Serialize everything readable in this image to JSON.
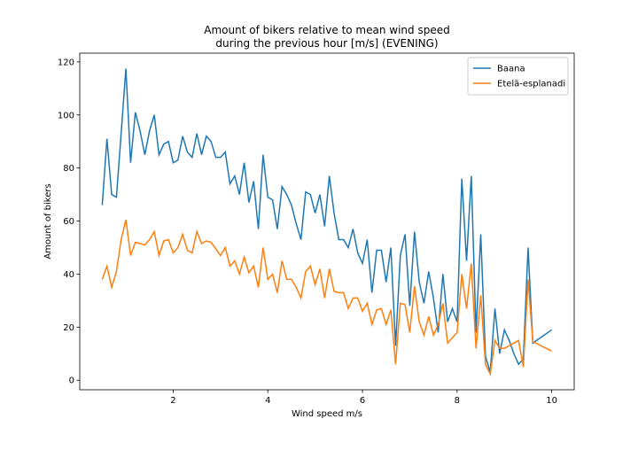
{
  "chart_data": {
    "type": "line",
    "title": [
      "Amount of bikers relative to mean wind speed",
      "during the previous hour [m/s] (EVENING)"
    ],
    "x_label": "Wind speed m/s",
    "y_label": "Amount of bikers",
    "x": [
      0.5,
      0.6,
      0.7,
      0.8,
      0.9,
      1.0,
      1.1,
      1.2,
      1.3,
      1.4,
      1.5,
      1.6,
      1.7,
      1.8,
      1.9,
      2.0,
      2.1,
      2.2,
      2.3,
      2.4,
      2.5,
      2.6,
      2.7,
      2.8,
      2.9,
      3.0,
      3.1,
      3.2,
      3.3,
      3.4,
      3.5,
      3.6,
      3.7,
      3.8,
      3.9,
      4.0,
      4.1,
      4.2,
      4.3,
      4.4,
      4.5,
      4.6,
      4.7,
      4.8,
      4.9,
      5.0,
      5.1,
      5.2,
      5.3,
      5.4,
      5.5,
      5.6,
      5.7,
      5.8,
      5.9,
      6.0,
      6.1,
      6.2,
      6.3,
      6.4,
      6.5,
      6.6,
      6.7,
      6.8,
      6.9,
      7.0,
      7.1,
      7.2,
      7.3,
      7.4,
      7.5,
      7.6,
      7.7,
      7.8,
      7.9,
      8.0,
      8.1,
      8.2,
      8.3,
      8.4,
      8.5,
      8.6,
      8.7,
      8.8,
      8.9,
      9.0,
      9.1,
      9.2,
      9.3,
      9.4,
      9.5,
      9.6,
      10.0
    ],
    "series": [
      {
        "name": "Baana",
        "color": "#1f77b4",
        "values": [
          66,
          91,
          70,
          69,
          93,
          117.5,
          82,
          101,
          94,
          85,
          94,
          100,
          85,
          89,
          90,
          82,
          83,
          92,
          86,
          84,
          93,
          85,
          92,
          90,
          84,
          84,
          86,
          74,
          77,
          70,
          82,
          67,
          75,
          57,
          85,
          69,
          68,
          57,
          73,
          70,
          66,
          59,
          53,
          71,
          70,
          63,
          70,
          58,
          77,
          63,
          53,
          53,
          50,
          57,
          48,
          44,
          53,
          33,
          49,
          49,
          37,
          50,
          13,
          47,
          55,
          28,
          56,
          37,
          29,
          41,
          31,
          18,
          40,
          22,
          27,
          22,
          76,
          45,
          77,
          18,
          55,
          9,
          3,
          27,
          10,
          19,
          15,
          10,
          6,
          8,
          50,
          14,
          19
        ]
      },
      {
        "name": "Etelä-esplanadi",
        "color": "#ff7f0e",
        "values": [
          38,
          43,
          35,
          41,
          53,
          60.5,
          47,
          52,
          51.5,
          51,
          53,
          56,
          47,
          52.5,
          53,
          48,
          50,
          55,
          49,
          48,
          56,
          51.5,
          52.5,
          52,
          49.5,
          47,
          50,
          43,
          45,
          40,
          46.5,
          40.5,
          43,
          35,
          50,
          38,
          40,
          33,
          45,
          38,
          38,
          35,
          31,
          41,
          43,
          36,
          42,
          31,
          42,
          33.5,
          33,
          33,
          27,
          31,
          31,
          26,
          29,
          21,
          26.5,
          27,
          21,
          26.5,
          6,
          29,
          28.5,
          18,
          35.5,
          22,
          17,
          24,
          17,
          21,
          29,
          14,
          16,
          18,
          40,
          27,
          44,
          12,
          32,
          6,
          2.3,
          15,
          12,
          12,
          13,
          14,
          15,
          5,
          38,
          14.5,
          11
        ]
      }
    ],
    "xlim": [
      0.025,
      10.475
    ],
    "ylim": [
      -3.6,
      123.3
    ],
    "xticks": [
      2,
      4,
      6,
      8,
      10
    ],
    "yticks": [
      0,
      20,
      40,
      60,
      80,
      100,
      120
    ],
    "legend": "upper right"
  }
}
